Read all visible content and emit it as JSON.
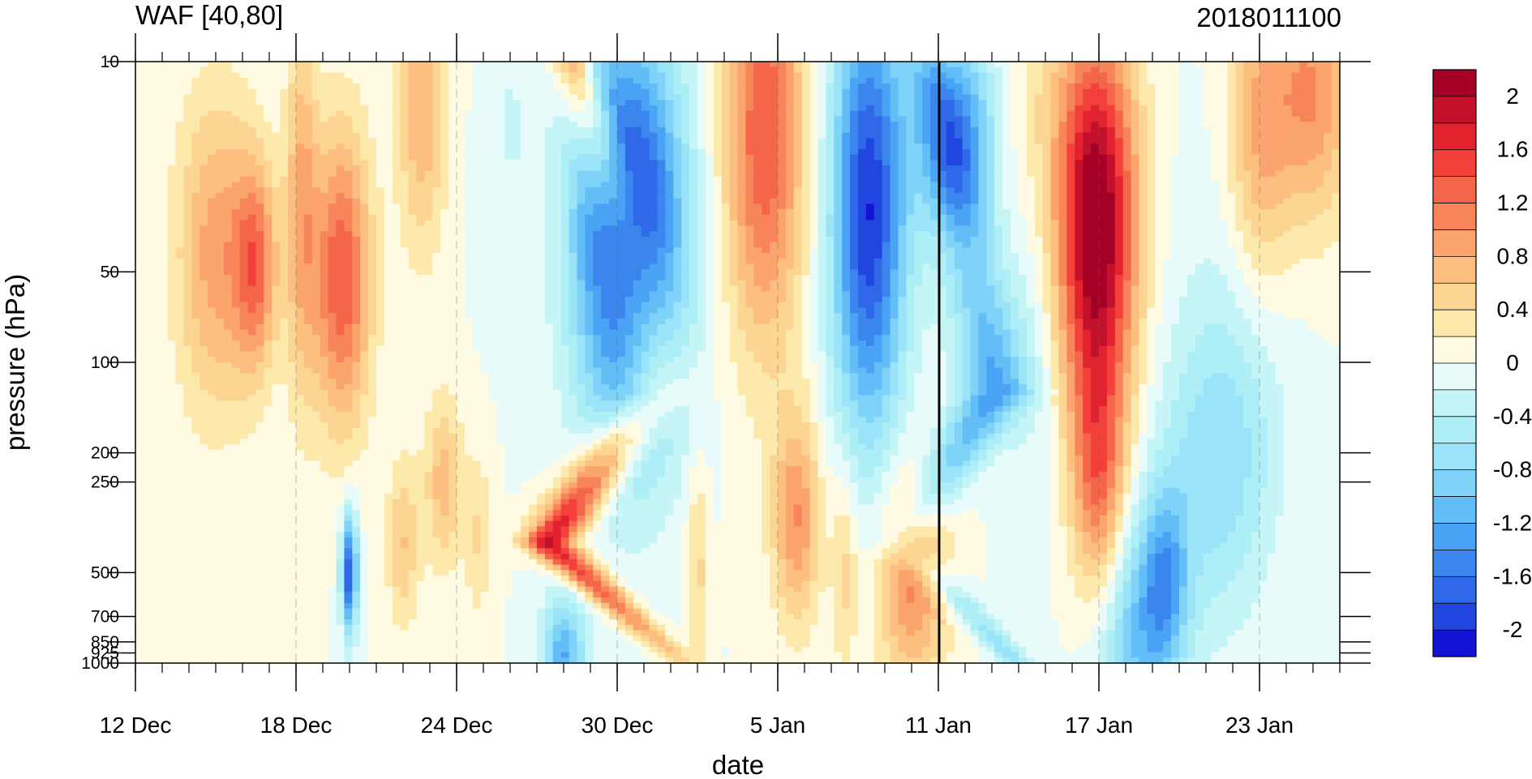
{
  "chart_data": {
    "type": "heatmap",
    "title": "WAF [40,80]",
    "subtitle": "2018011100",
    "xlabel": "date",
    "ylabel": "pressure (hPa)",
    "x_ticks": [
      "12 Dec",
      "18 Dec",
      "24 Dec",
      "30 Dec",
      "5 Jan",
      "11 Jan",
      "17 Jan",
      "23 Jan"
    ],
    "x_range": [
      "12 Dec 2017",
      "26 Jan 2018"
    ],
    "y_ticks": [
      10,
      50,
      100,
      200,
      250,
      500,
      700,
      850,
      925,
      1000
    ],
    "y_tick_labels": [
      "10",
      "50",
      "100",
      "200",
      "250",
      "500",
      "700",
      "850",
      "925",
      "1000"
    ],
    "y_range": [
      10,
      1000
    ],
    "y_scale": "log-pressure (inverted)",
    "vertical_marker": "11 Jan",
    "colorbar": {
      "levels": [
        -2.2,
        -2.0,
        -1.8,
        -1.6,
        -1.4,
        -1.2,
        -1.0,
        -0.8,
        -0.6,
        -0.4,
        -0.2,
        0.0,
        0.2,
        0.4,
        0.6,
        0.8,
        1.0,
        1.2,
        1.4,
        1.6,
        1.8,
        2.0,
        2.2
      ],
      "labels": [
        "2",
        "1.6",
        "1.2",
        "0.8",
        "0.4",
        "0",
        "-0.4",
        "-0.8",
        "-1.2",
        "-1.6",
        "-2"
      ],
      "colors": [
        "#a50026",
        "#c3102b",
        "#e2222e",
        "#f3403a",
        "#f4654a",
        "#f8855a",
        "#fca46d",
        "#fcbf80",
        "#fdd593",
        "#fee9ac",
        "#fffbe3",
        "#e8fbfb",
        "#c6f5f8",
        "#aeeef7",
        "#9ae3f8",
        "#7fd3f8",
        "#63bef7",
        "#4aa3f4",
        "#3b85ee",
        "#2f68e8",
        "#2146e0",
        "#1313d4"
      ]
    },
    "grid": "dashed vertical lines at date ticks"
  }
}
